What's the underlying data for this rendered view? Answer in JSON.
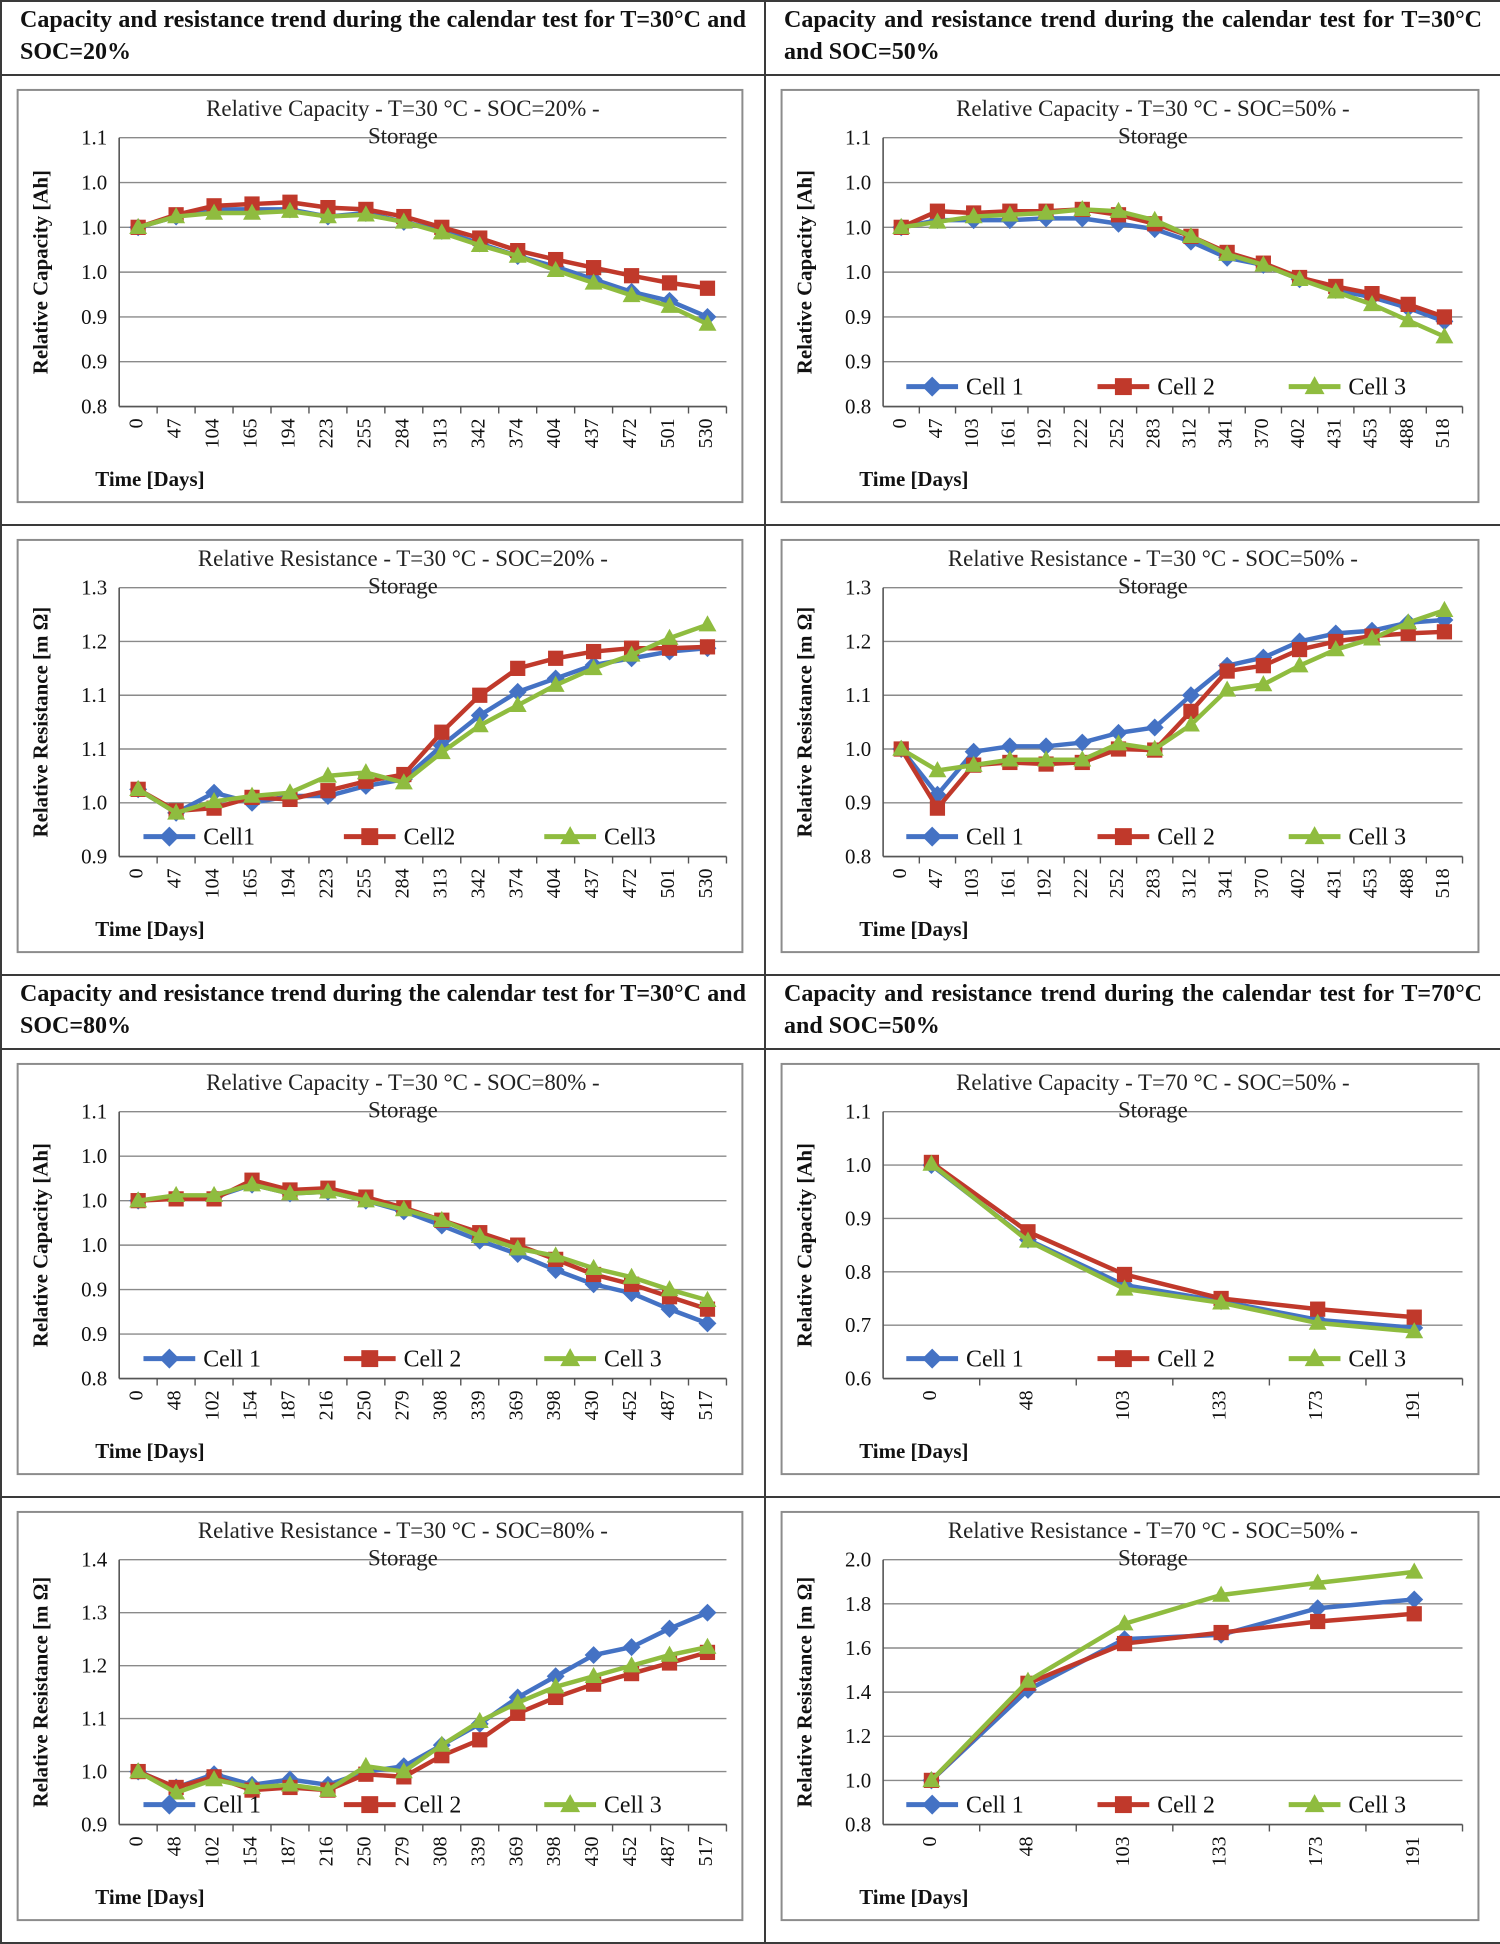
{
  "headers": [
    "Capacity and resistance trend during the calendar test for T=30°C and SOC=20%",
    "Capacity and resistance trend during the calendar test for T=30°C and SOC=50%",
    "Capacity and resistance trend during the calendar test for T=30°C and SOC=80%",
    "Capacity and resistance trend during the calendar test for T=70°C and SOC=50%"
  ],
  "colors": {
    "cell1": "#4472c4",
    "cell2": "#c0392b",
    "cell3": "#8fbc3f"
  },
  "chart_data": [
    {
      "type": "line",
      "title": "Relative Capacity - T=30 °C - SOC=20% -",
      "title2": "Storage",
      "xlabel": "Time [Days]",
      "ylabel": "Relative Capacity [Ah]",
      "yticks": [
        "0.8",
        "0.9",
        "0.9",
        "1.0",
        "1.0",
        "1.0",
        "1.1"
      ],
      "ylim": [
        0.8,
        1.1
      ],
      "categories": [
        "0",
        "47",
        "104",
        "165",
        "194",
        "223",
        "255",
        "284",
        "313",
        "342",
        "374",
        "404",
        "437",
        "472",
        "501",
        "530"
      ],
      "series": [
        {
          "name": "Cell 1",
          "values": [
            1.0,
            1.012,
            1.02,
            1.02,
            1.02,
            1.012,
            1.016,
            1.006,
            0.996,
            0.982,
            0.968,
            0.956,
            0.942,
            0.928,
            0.918,
            0.9
          ]
        },
        {
          "name": "Cell 2",
          "values": [
            1.0,
            1.014,
            1.024,
            1.026,
            1.028,
            1.022,
            1.02,
            1.012,
            1.0,
            0.988,
            0.974,
            0.964,
            0.955,
            0.946,
            0.938,
            0.932
          ]
        },
        {
          "name": "Cell 3",
          "values": [
            1.0,
            1.012,
            1.016,
            1.016,
            1.018,
            1.012,
            1.014,
            1.006,
            0.994,
            0.98,
            0.968,
            0.952,
            0.938,
            0.924,
            0.912,
            0.892
          ]
        }
      ],
      "legend": null
    },
    {
      "type": "line",
      "title": "Relative Capacity - T=30 °C - SOC=50% -",
      "title2": "Storage",
      "xlabel": "Time [Days]",
      "ylabel": "Relative Capacity [Ah]",
      "yticks": [
        "0.8",
        "0.9",
        "0.9",
        "1.0",
        "1.0",
        "1.0",
        "1.1"
      ],
      "ylim": [
        0.8,
        1.1
      ],
      "categories": [
        "0",
        "47",
        "103",
        "161",
        "192",
        "222",
        "252",
        "283",
        "312",
        "341",
        "370",
        "402",
        "431",
        "453",
        "488",
        "518"
      ],
      "series": [
        {
          "name": "Cell 1",
          "values": [
            1.0,
            1.008,
            1.008,
            1.008,
            1.01,
            1.01,
            1.004,
            0.998,
            0.984,
            0.966,
            0.958,
            0.942,
            0.93,
            0.922,
            0.91,
            0.895
          ]
        },
        {
          "name": "Cell 2",
          "values": [
            1.0,
            1.018,
            1.016,
            1.018,
            1.018,
            1.02,
            1.014,
            1.004,
            0.99,
            0.972,
            0.96,
            0.944,
            0.934,
            0.926,
            0.914,
            0.9
          ]
        },
        {
          "name": "Cell 3",
          "values": [
            1.0,
            1.006,
            1.012,
            1.014,
            1.016,
            1.02,
            1.018,
            1.008,
            0.99,
            0.97,
            0.958,
            0.942,
            0.928,
            0.914,
            0.896,
            0.878
          ]
        }
      ],
      "legend": {
        "placement": "bottom",
        "labels": [
          "Cell 1",
          "Cell 2",
          "Cell 3"
        ]
      }
    },
    {
      "type": "line",
      "title": "Relative Resistance - T=30 °C - SOC=20% -",
      "title2": "Storage",
      "xlabel": "Time [Days]",
      "ylabel": "Relative Resistance [m Ω]",
      "yticks": [
        "0.9",
        "1.0",
        "1.1",
        "1.1",
        "1.2",
        "1.3"
      ],
      "ylim": [
        0.9,
        1.3
      ],
      "categories": [
        "0",
        "47",
        "104",
        "165",
        "194",
        "223",
        "255",
        "284",
        "313",
        "342",
        "374",
        "404",
        "437",
        "472",
        "501",
        "530"
      ],
      "series": [
        {
          "name": "Cell1",
          "values": [
            1.0,
            0.965,
            0.995,
            0.98,
            0.99,
            0.99,
            1.005,
            1.015,
            1.065,
            1.11,
            1.145,
            1.165,
            1.185,
            1.195,
            1.205,
            1.21
          ]
        },
        {
          "name": "Cell2",
          "values": [
            1.0,
            0.968,
            0.972,
            0.988,
            0.985,
            0.998,
            1.012,
            1.022,
            1.085,
            1.14,
            1.18,
            1.195,
            1.205,
            1.21,
            1.21,
            1.212
          ]
        },
        {
          "name": "Cell3",
          "values": [
            1.0,
            0.965,
            0.982,
            0.99,
            0.995,
            1.02,
            1.025,
            1.01,
            1.055,
            1.095,
            1.125,
            1.155,
            1.18,
            1.2,
            1.225,
            1.245
          ]
        }
      ],
      "legend": {
        "placement": "bottom",
        "labels": [
          "Cell1",
          "Cell2",
          "Cell3"
        ]
      }
    },
    {
      "type": "line",
      "title": "Relative Resistance - T=30 °C - SOC=50% -",
      "title2": "Storage",
      "xlabel": "Time [Days]",
      "ylabel": "Relative Resistance [m Ω]",
      "yticks": [
        "0.8",
        "0.9",
        "1.0",
        "1.1",
        "1.2",
        "1.3"
      ],
      "ylim": [
        0.8,
        1.3
      ],
      "categories": [
        "0",
        "47",
        "103",
        "161",
        "192",
        "222",
        "252",
        "283",
        "312",
        "341",
        "370",
        "402",
        "431",
        "453",
        "488",
        "518"
      ],
      "series": [
        {
          "name": "Cell 1",
          "values": [
            1.0,
            0.915,
            0.995,
            1.005,
            1.005,
            1.012,
            1.03,
            1.04,
            1.1,
            1.155,
            1.17,
            1.2,
            1.215,
            1.22,
            1.235,
            1.24
          ]
        },
        {
          "name": "Cell 2",
          "values": [
            1.0,
            0.89,
            0.97,
            0.975,
            0.972,
            0.975,
            1.0,
            0.998,
            1.07,
            1.145,
            1.155,
            1.185,
            1.2,
            1.21,
            1.215,
            1.218
          ]
        },
        {
          "name": "Cell 3",
          "values": [
            1.0,
            0.96,
            0.97,
            0.98,
            0.98,
            0.98,
            1.01,
            1.0,
            1.045,
            1.11,
            1.12,
            1.155,
            1.185,
            1.205,
            1.235,
            1.258
          ]
        }
      ],
      "legend": {
        "placement": "bottom",
        "labels": [
          "Cell 1",
          "Cell 2",
          "Cell 3"
        ]
      }
    },
    {
      "type": "line",
      "title": "Relative Capacity - T=30 °C - SOC=80% -",
      "title2": "Storage",
      "xlabel": "Time [Days]",
      "ylabel": "Relative Capacity [Ah]",
      "yticks": [
        "0.8",
        "0.9",
        "0.9",
        "1.0",
        "1.0",
        "1.0",
        "1.1"
      ],
      "ylim": [
        0.8,
        1.1
      ],
      "categories": [
        "0",
        "48",
        "102",
        "154",
        "187",
        "216",
        "250",
        "279",
        "308",
        "339",
        "369",
        "398",
        "430",
        "452",
        "487",
        "517"
      ],
      "series": [
        {
          "name": "Cell 1",
          "values": [
            1.0,
            1.004,
            1.004,
            1.018,
            1.008,
            1.01,
            1.0,
            0.988,
            0.972,
            0.955,
            0.94,
            0.922,
            0.906,
            0.896,
            0.878,
            0.862
          ]
        },
        {
          "name": "Cell 2",
          "values": [
            1.0,
            1.002,
            1.002,
            1.023,
            1.012,
            1.014,
            1.004,
            0.992,
            0.978,
            0.964,
            0.95,
            0.934,
            0.917,
            0.906,
            0.892,
            0.878
          ]
        },
        {
          "name": "Cell 3",
          "values": [
            1.0,
            1.006,
            1.006,
            1.018,
            1.008,
            1.01,
            1.0,
            0.99,
            0.978,
            0.96,
            0.946,
            0.938,
            0.924,
            0.914,
            0.9,
            0.888
          ]
        }
      ],
      "legend": {
        "placement": "bottom",
        "labels": [
          "Cell 1",
          "Cell 2",
          "Cell 3"
        ]
      }
    },
    {
      "type": "line",
      "title": "Relative Capacity - T=70 °C - SOC=50% -",
      "title2": "Storage",
      "xlabel": "Time [Days]",
      "ylabel": "Relative Capacity [Ah]",
      "yticks": [
        "0.6",
        "0.7",
        "0.8",
        "0.9",
        "1.0",
        "1.1"
      ],
      "ylim": [
        0.6,
        1.1
      ],
      "categories": [
        "0",
        "48",
        "103",
        "133",
        "173",
        "191"
      ],
      "series": [
        {
          "name": "Cell 1",
          "values": [
            1.0,
            0.86,
            0.775,
            0.745,
            0.71,
            0.695
          ]
        },
        {
          "name": "Cell 2",
          "values": [
            1.005,
            0.875,
            0.795,
            0.75,
            0.73,
            0.715
          ]
        },
        {
          "name": "Cell 3",
          "values": [
            1.002,
            0.858,
            0.768,
            0.742,
            0.704,
            0.688
          ]
        }
      ],
      "legend": {
        "placement": "bottom",
        "labels": [
          "Cell 1",
          "Cell 2",
          "Cell 3"
        ]
      }
    },
    {
      "type": "line",
      "title": "Relative Resistance - T=30 °C - SOC=80% -",
      "title2": "Storage",
      "xlabel": "Time [Days]",
      "ylabel": "Relative Resistance [m Ω]",
      "yticks": [
        "0.9",
        "1.0",
        "1.1",
        "1.2",
        "1.3",
        "1.4"
      ],
      "ylim": [
        0.9,
        1.4
      ],
      "categories": [
        "0",
        "48",
        "102",
        "154",
        "187",
        "216",
        "250",
        "279",
        "308",
        "339",
        "369",
        "398",
        "430",
        "452",
        "487",
        "517"
      ],
      "series": [
        {
          "name": "Cell 1",
          "values": [
            1.0,
            0.97,
            0.995,
            0.975,
            0.985,
            0.975,
            1.0,
            1.01,
            1.05,
            1.09,
            1.14,
            1.18,
            1.22,
            1.235,
            1.27,
            1.3
          ]
        },
        {
          "name": "Cell 2",
          "values": [
            1.0,
            0.97,
            0.99,
            0.965,
            0.97,
            0.965,
            0.995,
            0.99,
            1.03,
            1.06,
            1.11,
            1.14,
            1.165,
            1.185,
            1.205,
            1.225
          ]
        },
        {
          "name": "Cell 3",
          "values": [
            1.0,
            0.96,
            0.985,
            0.97,
            0.975,
            0.965,
            1.01,
            1.0,
            1.05,
            1.095,
            1.13,
            1.16,
            1.18,
            1.2,
            1.22,
            1.235
          ]
        }
      ],
      "legend": {
        "placement": "bottom",
        "labels": [
          "Cell 1",
          "Cell 2",
          "Cell 3"
        ]
      }
    },
    {
      "type": "line",
      "title": "Relative Resistance - T=70 °C - SOC=50% -",
      "title2": "Storage",
      "xlabel": "Time [Days]",
      "ylabel": "Relative Resistance [m Ω]",
      "yticks": [
        "0.8",
        "1.0",
        "1.2",
        "1.4",
        "1.6",
        "1.8",
        "2.0"
      ],
      "ylim": [
        0.8,
        2.0
      ],
      "categories": [
        "0",
        "48",
        "103",
        "133",
        "173",
        "191"
      ],
      "series": [
        {
          "name": "Cell 1",
          "values": [
            1.0,
            1.41,
            1.64,
            1.66,
            1.78,
            1.82
          ]
        },
        {
          "name": "Cell 2",
          "values": [
            1.0,
            1.44,
            1.62,
            1.67,
            1.72,
            1.755
          ]
        },
        {
          "name": "Cell 3",
          "values": [
            1.0,
            1.45,
            1.71,
            1.84,
            1.895,
            1.945
          ]
        }
      ],
      "legend": {
        "placement": "bottom",
        "labels": [
          "Cell 1",
          "Cell 2",
          "Cell 3"
        ]
      }
    }
  ]
}
